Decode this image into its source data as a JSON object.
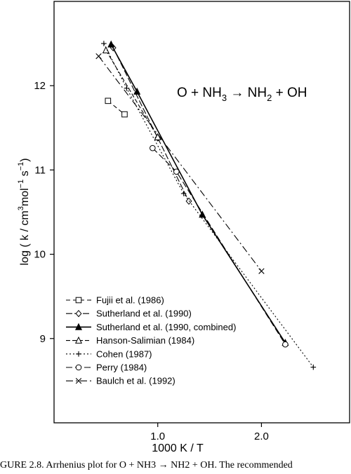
{
  "chart_data": {
    "type": "line",
    "title": "O + NH3 → NH2 + OH",
    "title_parts": {
      "a": "O + NH",
      "a_sub": "3",
      "arrow": " → ",
      "b": "NH",
      "b_sub": "2",
      "c": " + OH"
    },
    "xlabel": "1000 K / T",
    "ylabel": "log ( k / cm3 mol−1 s−1)",
    "ylabel_parts": {
      "p1": "log ( k / cm",
      "s1": "3",
      "p2": "mol",
      "s2": "−1",
      "p3": " s",
      "s3": "−1",
      "p4": ")"
    },
    "xlim": [
      0.0,
      2.85
    ],
    "ylim": [
      8.0,
      13.0
    ],
    "xticks": [
      {
        "value": 1.0,
        "label": "1.0"
      },
      {
        "value": 2.0,
        "label": "2.0"
      }
    ],
    "yticks": [
      {
        "value": 9,
        "label": "9"
      },
      {
        "value": 10,
        "label": "10"
      },
      {
        "value": 11,
        "label": "11"
      },
      {
        "value": 12,
        "label": "12"
      }
    ],
    "legend_position": "bottom-left",
    "series": [
      {
        "name": "Fujii et al. (1986)",
        "marker": "square-open",
        "dash": "6,4",
        "x": [
          0.52,
          0.68
        ],
        "y": [
          11.82,
          11.66
        ]
      },
      {
        "name": "Sutherland et al. (1990)",
        "marker": "diamond-open",
        "dash": "9,3",
        "x": [
          0.57,
          1.0,
          1.3
        ],
        "y": [
          12.45,
          11.38,
          10.63
        ]
      },
      {
        "name": "Sutherland et al. (1990, combined)",
        "marker": "triangle-filled",
        "dash": "",
        "x": [
          0.55,
          0.8,
          1.43,
          2.23
        ],
        "y": [
          12.49,
          11.93,
          10.47,
          8.95
        ]
      },
      {
        "name": "Hanson-Salimian (1984)",
        "marker": "triangle-open",
        "dash": "6,3",
        "x": [
          0.5,
          1.0
        ],
        "y": [
          12.42,
          11.39
        ]
      },
      {
        "name": "Cohen (1987)",
        "marker": "plus",
        "dash": "2,3",
        "x": [
          0.48,
          0.7,
          1.25,
          2.5
        ],
        "y": [
          12.5,
          11.97,
          10.72,
          8.66
        ]
      },
      {
        "name": "Perry (1984)",
        "marker": "circle-open",
        "dash": "9,4",
        "x": [
          0.95,
          1.18,
          2.23
        ],
        "y": [
          11.26,
          10.98,
          8.93
        ]
      },
      {
        "name": "Baulch et al. (1992)",
        "marker": "x",
        "dash": "10,4,2,4",
        "x": [
          0.43,
          2.0
        ],
        "y": [
          12.35,
          9.8
        ]
      }
    ]
  },
  "caption": "GURE 2.8. Arrhenius plot for O + NH3 → NH2 + OH. The recommended"
}
